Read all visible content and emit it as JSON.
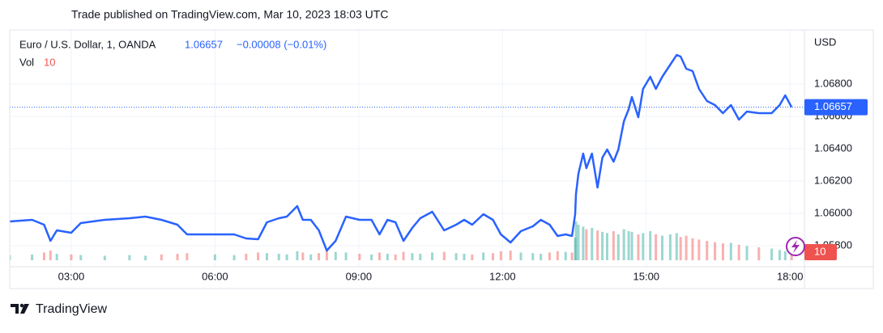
{
  "chart_data": {
    "type": "line",
    "published": "Trade published on TradingView.com, Mar 10, 2023 18:03 UTC",
    "title": "Euro / U.S. Dollar, 1, OANDA",
    "last_price": 1.06657,
    "change": "−0.00008 (−0.01%)",
    "volume_label": "Vol",
    "currency": "USD",
    "brand": "TradingView",
    "series": [
      {
        "color": "#2962ff",
        "x": [
          103,
          131,
          146,
          154,
          162,
          180,
          192,
          222,
          253,
          273,
          293,
          313,
          325,
          360,
          384,
          399,
          414,
          425,
          440,
          450,
          463,
          470,
          480,
          490,
          500,
          511,
          524,
          541,
          556,
          566,
          576,
          586,
          596,
          607,
          617,
          632,
          647,
          662,
          672,
          682,
          696,
          708,
          718,
          730,
          743,
          758,
          768,
          779,
          789,
          799,
          807,
          811,
          812,
          815,
          821,
          825,
          832,
          839,
          845,
          851,
          859,
          865,
          872,
          878,
          882,
          890,
          896,
          905,
          912,
          920,
          930,
          938,
          943,
          950,
          958,
          966,
          976,
          986,
          996,
          1006,
          1016,
          1026,
          1041,
          1057,
          1067,
          1074,
          1082
        ],
        "values": [
          1.0595,
          1.0596,
          1.0593,
          1.0583,
          1.05895,
          1.0588,
          1.0594,
          1.0596,
          1.0597,
          1.0598,
          1.0596,
          1.0593,
          1.0587,
          1.0587,
          1.0587,
          1.05845,
          1.0584,
          1.05945,
          1.0597,
          1.0598,
          1.06045,
          1.0596,
          1.0596,
          1.05895,
          1.0577,
          1.0583,
          1.0598,
          1.0596,
          1.0596,
          1.0587,
          1.0596,
          1.05945,
          1.0583,
          1.0591,
          1.0597,
          1.0601,
          1.05895,
          1.0593,
          1.0596,
          1.0593,
          1.05995,
          1.0596,
          1.0587,
          1.0582,
          1.0589,
          1.0592,
          1.0596,
          1.0593,
          1.0586,
          1.0587,
          1.0586,
          1.05995,
          1.0612,
          1.06245,
          1.0637,
          1.0628,
          1.0637,
          1.0616,
          1.06345,
          1.06395,
          1.0632,
          1.06395,
          1.0657,
          1.06645,
          1.0672,
          1.06595,
          1.0677,
          1.06845,
          1.0677,
          1.06845,
          1.0692,
          1.0698,
          1.0697,
          1.06895,
          1.0688,
          1.0677,
          1.06695,
          1.0667,
          1.0662,
          1.0667,
          1.0658,
          1.0663,
          1.0662,
          1.0662,
          1.0667,
          1.0673,
          1.06657
        ]
      }
    ],
    "volume": {
      "up_color": "#26a69a",
      "down_color": "#ef5350",
      "values": [
        8,
        9,
        12,
        15,
        10,
        9,
        8,
        7,
        8,
        7,
        9,
        10,
        11,
        9,
        8,
        10,
        12,
        11,
        10,
        9,
        14,
        12,
        9,
        11,
        16,
        13,
        12,
        10,
        9,
        12,
        10,
        9,
        13,
        11,
        10,
        12,
        13,
        11,
        10,
        9,
        12,
        11,
        14,
        15,
        12,
        11,
        10,
        12,
        14,
        13,
        12,
        35,
        60,
        55,
        52,
        48,
        50,
        46,
        44,
        42,
        45,
        40,
        48,
        45,
        44,
        40,
        42,
        45,
        40,
        38,
        40,
        42,
        36,
        38,
        34,
        32,
        30,
        28,
        26,
        27,
        24,
        22,
        20,
        18,
        16,
        14,
        10
      ]
    },
    "xlim": [
      103,
      1098
    ],
    "ylim": [
      1.0567,
      1.07135
    ],
    "xticks": [
      {
        "value": 180,
        "label": "03:00"
      },
      {
        "value": 360,
        "label": "06:00"
      },
      {
        "value": 540,
        "label": "09:00"
      },
      {
        "value": 720,
        "label": "12:00"
      },
      {
        "value": 900,
        "label": "15:00"
      },
      {
        "value": 1080,
        "label": "18:00"
      }
    ],
    "yticks": [
      {
        "value": 1.058,
        "label": "1.05800"
      },
      {
        "value": 1.06,
        "label": "1.06000"
      },
      {
        "value": 1.062,
        "label": "1.06200"
      },
      {
        "value": 1.064,
        "label": "1.06400"
      },
      {
        "value": 1.066,
        "label": "1.06600"
      },
      {
        "value": 1.068,
        "label": "1.06800"
      }
    ],
    "grid": true
  }
}
